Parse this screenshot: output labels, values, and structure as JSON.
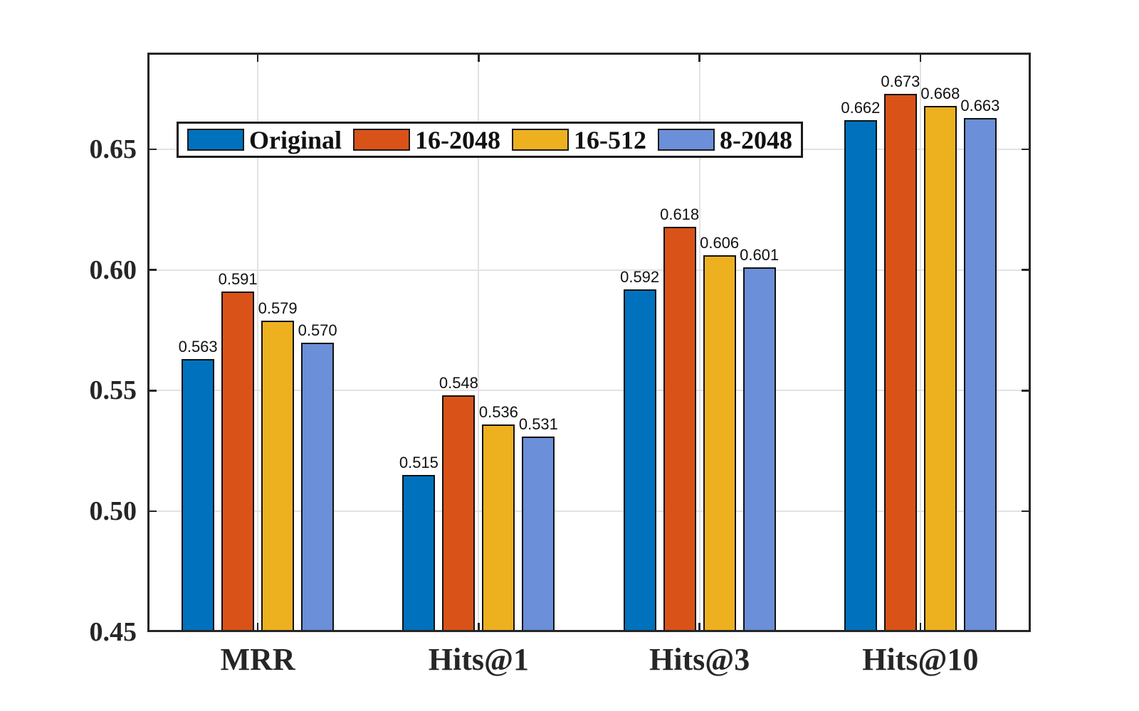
{
  "chart_data": {
    "type": "bar",
    "title": "",
    "xlabel": "",
    "ylabel": "",
    "categories": [
      "MRR",
      "Hits@1",
      "Hits@3",
      "Hits@10"
    ],
    "series": [
      {
        "name": "Original",
        "color": "#0072BD",
        "values": [
          0.563,
          0.515,
          0.592,
          0.662
        ]
      },
      {
        "name": "16-2048",
        "color": "#D95319",
        "values": [
          0.591,
          0.548,
          0.618,
          0.673
        ]
      },
      {
        "name": "16-512",
        "color": "#EDB120",
        "values": [
          0.579,
          0.536,
          0.606,
          0.668
        ]
      },
      {
        "name": "8-2048",
        "color": "#6B8FD8",
        "values": [
          0.57,
          0.531,
          0.601,
          0.663
        ]
      }
    ],
    "ylim": [
      0.45,
      0.69
    ],
    "yticks": [
      0.45,
      0.5,
      0.55,
      0.6,
      0.65
    ],
    "ytick_labels": [
      "0.45",
      "0.50",
      "0.55",
      "0.60",
      "0.65"
    ],
    "value_label_decimals": 3,
    "grid": true,
    "legend_position": "top-left-inside",
    "colors": {
      "axis": "#262626",
      "grid": "#e2e2e2",
      "bar_edge": "#111111",
      "background": "#ffffff",
      "text": "#111111"
    }
  }
}
